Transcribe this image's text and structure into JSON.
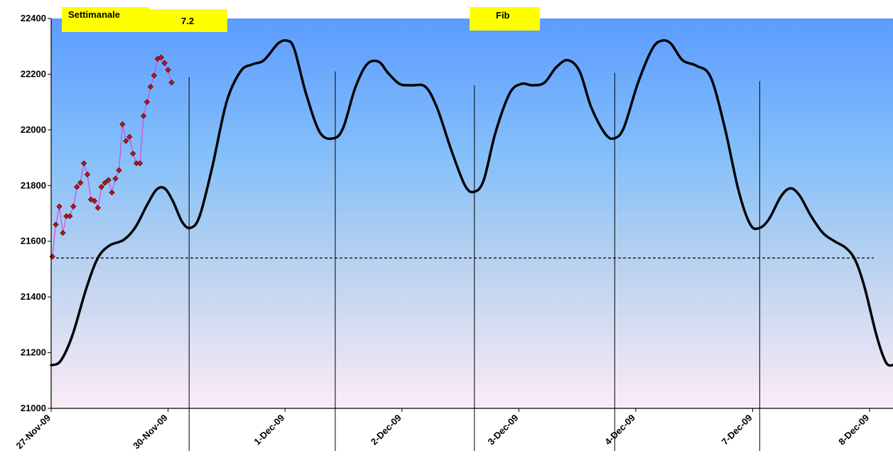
{
  "chart_data": {
    "type": "line",
    "y_ticks": [
      21000,
      21200,
      21400,
      21600,
      21800,
      22000,
      22200,
      22400
    ],
    "ylim": [
      21000,
      22400
    ],
    "x_ticks": [
      "27-Nov-09",
      "30-Nov-09",
      "1-Dec-09",
      "2-Dec-09",
      "3-Dec-09",
      "4-Dec-09",
      "7-Dec-09",
      "8-Dec-09"
    ],
    "xlim": [
      0,
      7.2
    ],
    "labels": {
      "weekly": "Settimanale",
      "weekly_value": "7.2",
      "fib": "Fib"
    },
    "reference_line": {
      "y": 21540,
      "style": "dashed"
    },
    "vertical_lines": [
      {
        "x": 1.18,
        "y_top": 22190
      },
      {
        "x": 2.43,
        "y_top": 22210
      },
      {
        "x": 3.62,
        "y_top": 22160
      },
      {
        "x": 4.82,
        "y_top": 22205
      },
      {
        "x": 6.06,
        "y_top": 22175
      }
    ],
    "series": [
      {
        "style": "smooth-line",
        "color": "#000000",
        "points": [
          [
            0.0,
            21155
          ],
          [
            0.08,
            21170
          ],
          [
            0.18,
            21260
          ],
          [
            0.3,
            21430
          ],
          [
            0.4,
            21540
          ],
          [
            0.5,
            21585
          ],
          [
            0.62,
            21605
          ],
          [
            0.72,
            21650
          ],
          [
            0.82,
            21730
          ],
          [
            0.9,
            21785
          ],
          [
            0.97,
            21790
          ],
          [
            1.04,
            21745
          ],
          [
            1.12,
            21670
          ],
          [
            1.19,
            21648
          ],
          [
            1.27,
            21690
          ],
          [
            1.38,
            21870
          ],
          [
            1.5,
            22100
          ],
          [
            1.62,
            22210
          ],
          [
            1.72,
            22235
          ],
          [
            1.82,
            22250
          ],
          [
            1.94,
            22310
          ],
          [
            2.02,
            22320
          ],
          [
            2.08,
            22290
          ],
          [
            2.18,
            22130
          ],
          [
            2.3,
            21990
          ],
          [
            2.42,
            21970
          ],
          [
            2.5,
            22010
          ],
          [
            2.6,
            22150
          ],
          [
            2.7,
            22235
          ],
          [
            2.8,
            22245
          ],
          [
            2.88,
            22205
          ],
          [
            2.98,
            22165
          ],
          [
            3.08,
            22160
          ],
          [
            3.2,
            22155
          ],
          [
            3.3,
            22080
          ],
          [
            3.42,
            21930
          ],
          [
            3.54,
            21800
          ],
          [
            3.62,
            21778
          ],
          [
            3.7,
            21820
          ],
          [
            3.8,
            21990
          ],
          [
            3.92,
            22130
          ],
          [
            4.02,
            22165
          ],
          [
            4.12,
            22160
          ],
          [
            4.22,
            22170
          ],
          [
            4.32,
            22225
          ],
          [
            4.42,
            22250
          ],
          [
            4.52,
            22210
          ],
          [
            4.62,
            22080
          ],
          [
            4.74,
            21985
          ],
          [
            4.82,
            21970
          ],
          [
            4.9,
            22010
          ],
          [
            5.02,
            22170
          ],
          [
            5.14,
            22290
          ],
          [
            5.22,
            22320
          ],
          [
            5.3,
            22310
          ],
          [
            5.4,
            22250
          ],
          [
            5.52,
            22230
          ],
          [
            5.64,
            22190
          ],
          [
            5.76,
            22010
          ],
          [
            5.88,
            21780
          ],
          [
            5.98,
            21660
          ],
          [
            6.06,
            21648
          ],
          [
            6.14,
            21680
          ],
          [
            6.24,
            21760
          ],
          [
            6.32,
            21790
          ],
          [
            6.4,
            21765
          ],
          [
            6.5,
            21690
          ],
          [
            6.6,
            21630
          ],
          [
            6.7,
            21600
          ],
          [
            6.8,
            21575
          ],
          [
            6.88,
            21530
          ],
          [
            6.96,
            21430
          ],
          [
            7.06,
            21260
          ],
          [
            7.14,
            21165
          ],
          [
            7.2,
            21155
          ]
        ]
      },
      {
        "style": "line-markers",
        "color": "#dd44dd",
        "marker_color": "#cc1111",
        "points": [
          [
            0.01,
            21545
          ],
          [
            0.04,
            21660
          ],
          [
            0.07,
            21725
          ],
          [
            0.1,
            21630
          ],
          [
            0.13,
            21690
          ],
          [
            0.16,
            21690
          ],
          [
            0.19,
            21725
          ],
          [
            0.22,
            21795
          ],
          [
            0.25,
            21810
          ],
          [
            0.28,
            21880
          ],
          [
            0.31,
            21840
          ],
          [
            0.34,
            21750
          ],
          [
            0.37,
            21745
          ],
          [
            0.4,
            21720
          ],
          [
            0.43,
            21795
          ],
          [
            0.46,
            21810
          ],
          [
            0.49,
            21820
          ],
          [
            0.52,
            21775
          ],
          [
            0.55,
            21825
          ],
          [
            0.58,
            21855
          ],
          [
            0.61,
            22020
          ],
          [
            0.64,
            21960
          ],
          [
            0.67,
            21975
          ],
          [
            0.7,
            21915
          ],
          [
            0.73,
            21880
          ],
          [
            0.76,
            21880
          ],
          [
            0.79,
            22050
          ],
          [
            0.82,
            22100
          ],
          [
            0.85,
            22155
          ],
          [
            0.88,
            22195
          ],
          [
            0.91,
            22255
          ],
          [
            0.94,
            22260
          ],
          [
            0.97,
            22240
          ],
          [
            1.0,
            22215
          ],
          [
            1.03,
            22170
          ]
        ]
      }
    ]
  }
}
